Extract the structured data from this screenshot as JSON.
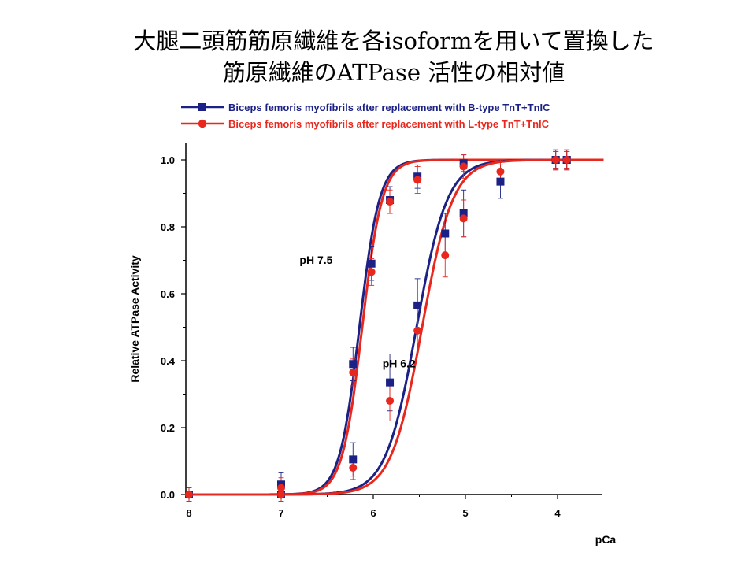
{
  "title_lines": [
    "大腿二頭筋筋原繊維を各isoformを用いて置換した",
    "筋原繊維のATPase 活性の相対値"
  ],
  "chart_data": {
    "type": "scatter",
    "xlabel": "pCa",
    "ylabel": "Relative ATPase Activity",
    "xlim": [
      8,
      3.5
    ],
    "ylim": [
      0,
      1.05
    ],
    "x_reversed": true,
    "x_ticks": [
      8,
      7,
      6,
      5,
      4
    ],
    "x_tick_labels": [
      "8",
      "7",
      "6",
      "5",
      "4"
    ],
    "y_ticks": [
      0,
      0.2,
      0.4,
      0.6,
      0.8,
      1.0
    ],
    "y_tick_labels": [
      "0.0",
      "0.2",
      "0.4",
      "0.6",
      "0.8",
      "1.0"
    ],
    "legend_position": "top",
    "legend": [
      {
        "label": "Biceps femoris myofibrils after replacement with B-type TnT+TnIC",
        "color": "#1c2285",
        "marker": "square"
      },
      {
        "label": "Biceps femoris myofibrils after replacement with L-type TnT+TnIC",
        "color": "#e8281e",
        "marker": "circle"
      }
    ],
    "annotations": [
      {
        "text": "pH 7.5",
        "x": 6.8,
        "y": 0.69
      },
      {
        "text": "pH 6.2",
        "x": 5.9,
        "y": 0.38
      }
    ],
    "series": [
      {
        "group": "pH 7.5",
        "type": "B",
        "color": "#1c2285",
        "marker": "square",
        "fit": {
          "pCa50": 6.15,
          "n": 4.0
        },
        "points": [
          {
            "x": 8.0,
            "y": 0.0,
            "err": 0.02
          },
          {
            "x": 7.0,
            "y": 0.03,
            "err": 0.035
          },
          {
            "x": 6.22,
            "y": 0.39,
            "err": 0.05
          },
          {
            "x": 6.02,
            "y": 0.69,
            "err": 0.05
          },
          {
            "x": 5.82,
            "y": 0.88,
            "err": 0.04
          },
          {
            "x": 5.52,
            "y": 0.95,
            "err": 0.035
          },
          {
            "x": 5.02,
            "y": 0.99,
            "err": 0.025
          },
          {
            "x": 4.02,
            "y": 1.0,
            "err": 0.025
          },
          {
            "x": 3.9,
            "y": 1.0,
            "err": 0.025
          }
        ]
      },
      {
        "group": "pH 7.5",
        "type": "L",
        "color": "#e8281e",
        "marker": "circle",
        "fit": {
          "pCa50": 6.12,
          "n": 4.0
        },
        "points": [
          {
            "x": 8.0,
            "y": 0.0,
            "err": 0.02
          },
          {
            "x": 7.0,
            "y": 0.02,
            "err": 0.03
          },
          {
            "x": 6.22,
            "y": 0.365,
            "err": 0.04
          },
          {
            "x": 6.02,
            "y": 0.665,
            "err": 0.04
          },
          {
            "x": 5.82,
            "y": 0.875,
            "err": 0.035
          },
          {
            "x": 5.52,
            "y": 0.94,
            "err": 0.04
          },
          {
            "x": 5.02,
            "y": 0.98,
            "err": 0.035
          },
          {
            "x": 4.02,
            "y": 1.0,
            "err": 0.025
          },
          {
            "x": 3.9,
            "y": 1.0,
            "err": 0.025
          }
        ]
      },
      {
        "group": "pH 6.2",
        "type": "B",
        "color": "#1c2285",
        "marker": "square",
        "fit": {
          "pCa50": 5.53,
          "n": 2.6
        },
        "points": [
          {
            "x": 8.0,
            "y": 0.0,
            "err": 0.02
          },
          {
            "x": 7.0,
            "y": 0.0,
            "err": 0.02
          },
          {
            "x": 6.22,
            "y": 0.105,
            "err": 0.05
          },
          {
            "x": 5.82,
            "y": 0.335,
            "err": 0.085
          },
          {
            "x": 5.52,
            "y": 0.565,
            "err": 0.08
          },
          {
            "x": 5.22,
            "y": 0.78,
            "err": 0.06
          },
          {
            "x": 5.02,
            "y": 0.84,
            "err": 0.07
          },
          {
            "x": 4.62,
            "y": 0.935,
            "err": 0.05
          },
          {
            "x": 4.02,
            "y": 1.0,
            "err": 0.03
          },
          {
            "x": 3.9,
            "y": 1.0,
            "err": 0.03
          }
        ]
      },
      {
        "group": "pH 6.2",
        "type": "L",
        "color": "#e8281e",
        "marker": "circle",
        "fit": {
          "pCa50": 5.47,
          "n": 2.6
        },
        "points": [
          {
            "x": 8.0,
            "y": 0.0,
            "err": 0.02
          },
          {
            "x": 7.0,
            "y": 0.0,
            "err": 0.02
          },
          {
            "x": 6.22,
            "y": 0.08,
            "err": 0.035
          },
          {
            "x": 5.82,
            "y": 0.28,
            "err": 0.06
          },
          {
            "x": 5.52,
            "y": 0.49,
            "err": 0.07
          },
          {
            "x": 5.22,
            "y": 0.715,
            "err": 0.065
          },
          {
            "x": 5.02,
            "y": 0.825,
            "err": 0.055
          },
          {
            "x": 4.62,
            "y": 0.965,
            "err": 0.035
          },
          {
            "x": 4.02,
            "y": 1.0,
            "err": 0.03
          },
          {
            "x": 3.9,
            "y": 1.0,
            "err": 0.03
          }
        ]
      }
    ]
  }
}
